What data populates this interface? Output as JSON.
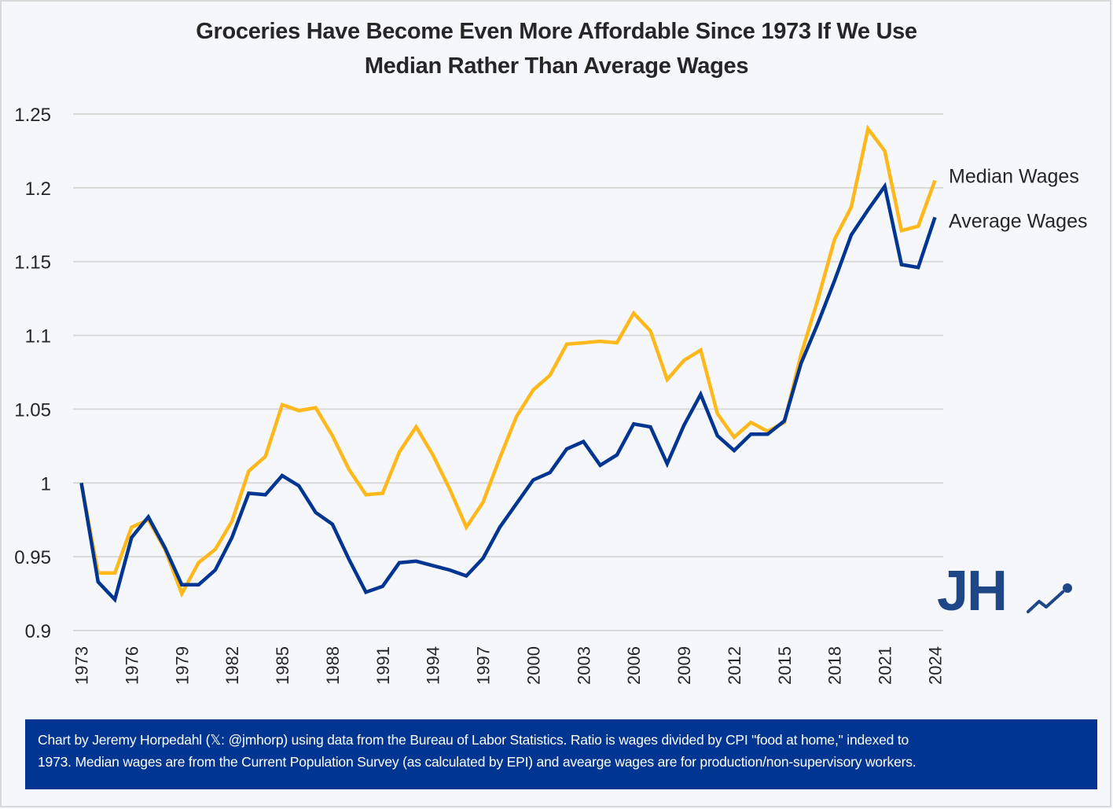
{
  "title_line1": "Groceries Have Become Even More Affordable Since 1973 If We Use",
  "title_line2": "Median Rather Than Average Wages",
  "footer_line1": "Chart by Jeremy Horpedahl (𝕏: @jmhorp) using data from the Bureau of Labor Statistics. Ratio is wages divided by CPI \"food at home,\" indexed to",
  "footer_line2": "1973. Median wages are from the Current Population Survey (as calculated by EPI) and avearge wages are for production/non-supervisory workers.",
  "logo": {
    "text": "JH",
    "icon": "trend-line-icon",
    "color": "#1f4788"
  },
  "colors": {
    "median": "#ffb81c",
    "average": "#003591",
    "grid": "#d9d9d9",
    "background": "#f5f7fa",
    "footer_bg": "#003591"
  },
  "chart_data": {
    "type": "line",
    "title": "Groceries Have Become Even More Affordable Since 1973 If We Use Median Rather Than Average Wages",
    "xlabel": "",
    "ylabel": "",
    "ylim": [
      0.9,
      1.25
    ],
    "yticks": [
      0.9,
      0.95,
      1,
      1.05,
      1.1,
      1.15,
      1.2,
      1.25
    ],
    "ytick_labels": [
      "0.9",
      "0.95",
      "1",
      "1.05",
      "1.1",
      "1.15",
      "1.2",
      "1.25"
    ],
    "xlim": [
      1973,
      2024
    ],
    "xtick_labels": [
      "1973",
      "1976",
      "1979",
      "1982",
      "1985",
      "1988",
      "1991",
      "1994",
      "1997",
      "2000",
      "2003",
      "2006",
      "2009",
      "2012",
      "2015",
      "2018",
      "2021",
      "2024"
    ],
    "grid": "horizontal",
    "legend": "direct labels at right end of lines",
    "x": [
      1973,
      1974,
      1975,
      1976,
      1977,
      1978,
      1979,
      1980,
      1981,
      1982,
      1983,
      1984,
      1985,
      1986,
      1987,
      1988,
      1989,
      1990,
      1991,
      1992,
      1993,
      1994,
      1995,
      1996,
      1997,
      1998,
      1999,
      2000,
      2001,
      2002,
      2003,
      2004,
      2005,
      2006,
      2007,
      2008,
      2009,
      2010,
      2011,
      2012,
      2013,
      2014,
      2015,
      2016,
      2017,
      2018,
      2019,
      2020,
      2021,
      2022,
      2023,
      2024
    ],
    "series": [
      {
        "name": "Median Wages",
        "color": "#ffb81c",
        "values": [
          1.0,
          0.939,
          0.939,
          0.97,
          0.975,
          0.955,
          0.925,
          0.946,
          0.955,
          0.974,
          1.008,
          1.018,
          1.053,
          1.049,
          1.051,
          1.032,
          1.009,
          0.992,
          0.993,
          1.021,
          1.038,
          1.019,
          0.996,
          0.97,
          0.987,
          1.017,
          1.045,
          1.063,
          1.073,
          1.094,
          1.095,
          1.096,
          1.095,
          1.115,
          1.103,
          1.07,
          1.083,
          1.09,
          1.047,
          1.031,
          1.041,
          1.035,
          1.041,
          1.087,
          1.124,
          1.165,
          1.187,
          1.24,
          1.225,
          1.171,
          1.174,
          1.205
        ]
      },
      {
        "name": "Average Wages",
        "color": "#003591",
        "values": [
          1.0,
          0.933,
          0.921,
          0.963,
          0.977,
          0.956,
          0.931,
          0.931,
          0.941,
          0.963,
          0.993,
          0.992,
          1.005,
          0.998,
          0.98,
          0.972,
          0.948,
          0.926,
          0.93,
          0.946,
          0.947,
          0.944,
          0.941,
          0.937,
          0.949,
          0.97,
          0.986,
          1.002,
          1.007,
          1.023,
          1.028,
          1.012,
          1.019,
          1.04,
          1.038,
          1.013,
          1.039,
          1.06,
          1.032,
          1.022,
          1.033,
          1.033,
          1.042,
          1.081,
          1.108,
          1.137,
          1.168,
          1.185,
          1.201,
          1.148,
          1.146,
          1.18
        ]
      }
    ]
  }
}
